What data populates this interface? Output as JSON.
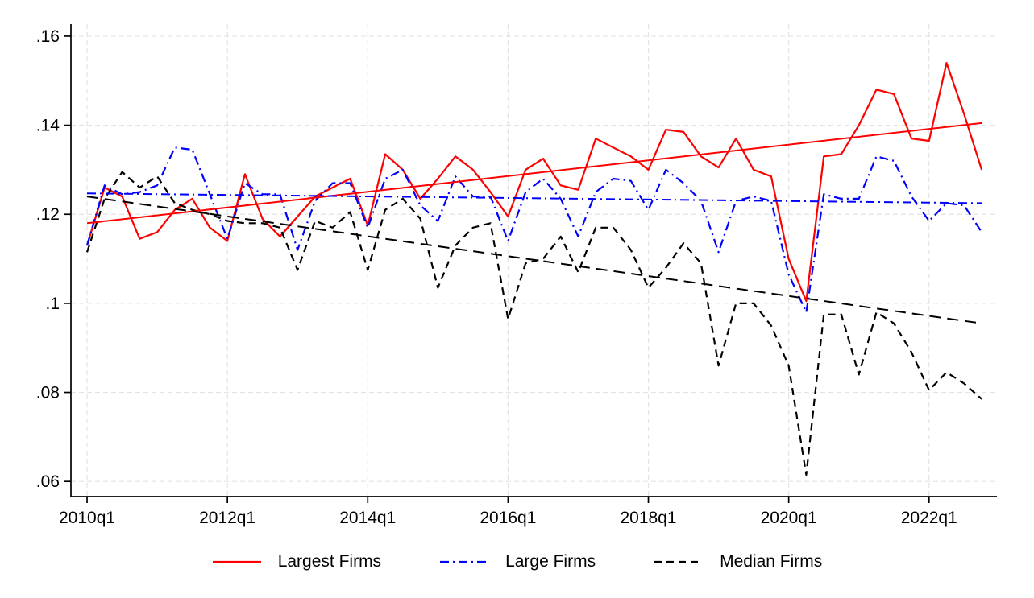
{
  "chart_data": {
    "type": "line",
    "title": "",
    "xlabel": "",
    "ylabel": "",
    "x_start": "2010q1",
    "x_end": "2022q4",
    "frequency": "quarterly",
    "xlim": [
      -0.92,
      51.87
    ],
    "ylim": [
      0.0566,
      0.1627
    ],
    "grid": true,
    "grid_color": "#e3e3e3",
    "axis_color": "#000000",
    "background_color": "#ffffff",
    "x_ticks": [
      {
        "q": 0,
        "label": "2010q1"
      },
      {
        "q": 8,
        "label": "2012q1"
      },
      {
        "q": 16,
        "label": "2014q1"
      },
      {
        "q": 24,
        "label": "2016q1"
      },
      {
        "q": 32,
        "label": "2018q1"
      },
      {
        "q": 40,
        "label": "2020q1"
      },
      {
        "q": 48,
        "label": "2022q1"
      }
    ],
    "y_ticks": [
      {
        "v": 0.06,
        "label": ".06"
      },
      {
        "v": 0.08,
        "label": ".08"
      },
      {
        "v": 0.1,
        "label": ".1"
      },
      {
        "v": 0.12,
        "label": ".12"
      },
      {
        "v": 0.14,
        "label": ".14"
      },
      {
        "v": 0.16,
        "label": ".16"
      }
    ],
    "series": [
      {
        "name": "Largest Firms",
        "color": "#ff0000",
        "style": "solid",
        "values": [
          0.113,
          0.126,
          0.124,
          0.1145,
          0.116,
          0.121,
          0.1235,
          0.117,
          0.114,
          0.129,
          0.119,
          0.115,
          0.1195,
          0.124,
          0.126,
          0.128,
          0.1175,
          0.1335,
          0.13,
          0.1235,
          0.128,
          0.133,
          0.13,
          0.125,
          0.1195,
          0.13,
          0.1325,
          0.1265,
          0.1255,
          0.137,
          0.135,
          0.133,
          0.13,
          0.139,
          0.1385,
          0.133,
          0.1305,
          0.137,
          0.13,
          0.1285,
          0.11,
          0.1005,
          0.133,
          0.1335,
          0.14,
          0.148,
          0.147,
          0.137,
          0.1365,
          0.154,
          0.1425,
          0.13
        ]
      },
      {
        "name": "Large Firms",
        "color": "#0000ff",
        "style": "dashdot",
        "values": [
          0.113,
          0.1265,
          0.1245,
          0.125,
          0.1265,
          0.135,
          0.1345,
          0.1245,
          0.1145,
          0.127,
          0.1245,
          0.1245,
          0.112,
          0.123,
          0.127,
          0.127,
          0.117,
          0.128,
          0.13,
          0.122,
          0.1185,
          0.1285,
          0.124,
          0.124,
          0.114,
          0.125,
          0.128,
          0.1235,
          0.115,
          0.125,
          0.128,
          0.1275,
          0.121,
          0.13,
          0.127,
          0.123,
          0.1115,
          0.123,
          0.124,
          0.123,
          0.1065,
          0.098,
          0.1245,
          0.1235,
          0.1235,
          0.133,
          0.132,
          0.124,
          0.1185,
          0.1225,
          0.122,
          0.116
        ]
      },
      {
        "name": "Median Firms",
        "color": "#000000",
        "style": "dash",
        "values": [
          0.1115,
          0.1235,
          0.1295,
          0.126,
          0.1285,
          0.1225,
          0.121,
          0.12,
          0.1185,
          0.118,
          0.118,
          0.117,
          0.1075,
          0.1185,
          0.117,
          0.1205,
          0.1075,
          0.121,
          0.1235,
          0.119,
          0.1035,
          0.113,
          0.117,
          0.118,
          0.0965,
          0.109,
          0.11,
          0.115,
          0.107,
          0.117,
          0.117,
          0.112,
          0.1035,
          0.108,
          0.1135,
          0.109,
          0.086,
          0.1,
          0.1,
          0.095,
          0.086,
          0.0615,
          0.0975,
          0.0975,
          0.084,
          0.098,
          0.0955,
          0.089,
          0.0805,
          0.0845,
          0.082,
          0.0785
        ]
      }
    ],
    "trend_lines": [
      {
        "series": "Largest Firms",
        "color": "#ff0000",
        "style": "solid",
        "start": 0.118,
        "end": 0.1405
      },
      {
        "series": "Large Firms",
        "color": "#0000ff",
        "style": "dashdot",
        "start": 0.1247,
        "end": 0.1225
      },
      {
        "series": "Median Firms",
        "color": "#000000",
        "style": "longdash",
        "start": 0.124,
        "end": 0.0955
      }
    ]
  },
  "legend": {
    "position": "bottom",
    "items": [
      {
        "label": "Largest Firms",
        "color": "#ff0000",
        "style": "solid"
      },
      {
        "label": "Large Firms",
        "color": "#0000ff",
        "style": "dashdot"
      },
      {
        "label": "Median Firms",
        "color": "#000000",
        "style": "dash"
      }
    ]
  }
}
